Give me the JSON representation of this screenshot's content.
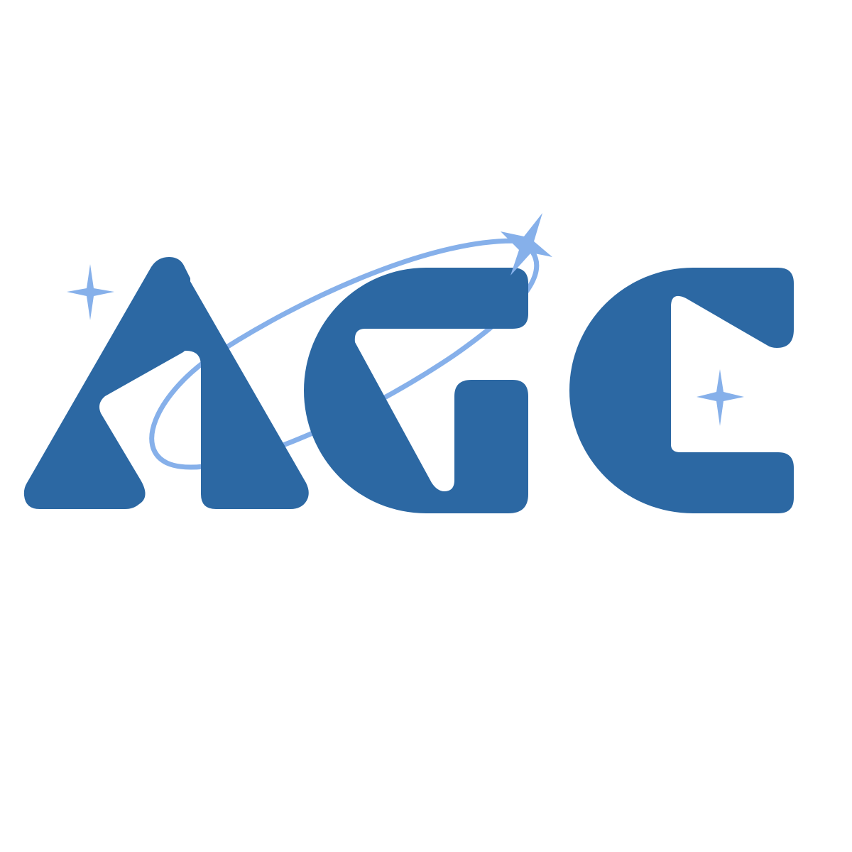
{
  "logo": {
    "text": "AGC",
    "colors": {
      "letters": "#2c68a3",
      "accent": "#86b0ea",
      "background": "#ffffff"
    },
    "icons": [
      "sparkle-icon",
      "orbit-ring",
      "shooting-star-icon"
    ]
  }
}
